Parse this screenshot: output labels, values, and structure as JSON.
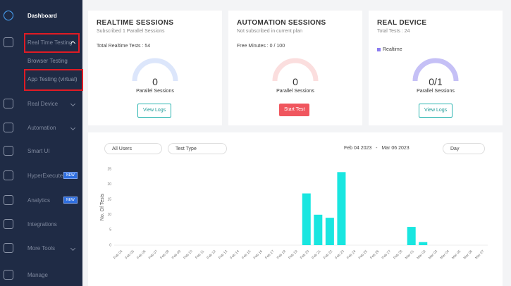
{
  "sidebar": {
    "items": [
      {
        "label": "Dashboard"
      },
      {
        "label": "Real Time Testing"
      },
      {
        "label": "Browser Testing"
      },
      {
        "label": "App Testing (virtual)"
      },
      {
        "label": "Real Device"
      },
      {
        "label": "Automation"
      },
      {
        "label": "Smart UI"
      },
      {
        "label": "HyperExecute",
        "badge": "NEW"
      },
      {
        "label": "Analytics",
        "badge": "NEW"
      },
      {
        "label": "Integrations"
      },
      {
        "label": "More Tools"
      },
      {
        "label": "Manage"
      }
    ]
  },
  "cards": [
    {
      "title": "REALTIME SESSIONS",
      "subtitle": "Subscribed 1 Parallel Sessions",
      "stat": "Total Realtime Tests : 54",
      "gauge": "0",
      "gauge_label": "Parallel Sessions",
      "button": "View Logs"
    },
    {
      "title": "AUTOMATION SESSIONS",
      "subtitle": "Not subscribed in current plan",
      "stat": "Free Minutes : 0 / 100",
      "gauge": "0",
      "gauge_label": "Parallel Sessions",
      "button": "Start Test"
    },
    {
      "title": "REAL DEVICE",
      "subtitle": "Total Tests : 24",
      "legend": "Realtime",
      "gauge": "0/1",
      "gauge_label": "Parallel Sessions",
      "button": "View Logs"
    }
  ],
  "filters": {
    "users": "All Users",
    "test_type": "Test Type",
    "date_from": "Feb 04 2023",
    "separator": "-",
    "date_to": "Mar 06 2023",
    "interval": "Day"
  },
  "chart_data": {
    "type": "bar",
    "y_label": "No. Of Tests",
    "categories": [
      "Feb 04",
      "Feb 05",
      "Feb 06",
      "Feb 07",
      "Feb 08",
      "Feb 09",
      "Feb 10",
      "Feb 11",
      "Feb 12",
      "Feb 13",
      "Feb 14",
      "Feb 15",
      "Feb 16",
      "Feb 17",
      "Feb 18",
      "Feb 19",
      "Feb 20",
      "Feb 21",
      "Feb 22",
      "Feb 23",
      "Feb 24",
      "Feb 25",
      "Feb 26",
      "Feb 27",
      "Feb 28",
      "Mar 01",
      "Mar 02",
      "Mar 03",
      "Mar 04",
      "Mar 05",
      "Mar 06",
      "Mar 07"
    ],
    "values": [
      0,
      0,
      0,
      0,
      0,
      0,
      0,
      0,
      0,
      0,
      0,
      0,
      0,
      0,
      0,
      0,
      17,
      10,
      9,
      24,
      0,
      0,
      0,
      0,
      0,
      6,
      1,
      0,
      0,
      0,
      0,
      0
    ],
    "color": "#19e6e0",
    "ylim": [
      0,
      25
    ],
    "yticks": [
      0,
      5,
      10,
      15,
      20,
      25
    ],
    "grid": false
  }
}
